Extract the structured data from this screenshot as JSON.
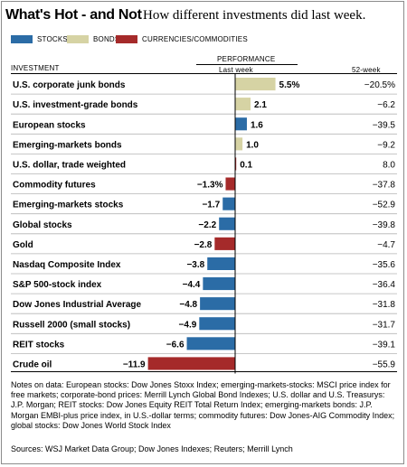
{
  "title": "What's Hot - and Not",
  "subtitle": "How different investments did last week.",
  "legend": [
    {
      "label": "STOCKS",
      "color": "#2b6ca6"
    },
    {
      "label": "BONDS",
      "color": "#d6d3a4"
    },
    {
      "label": "CURRENCIES/COMMODITIES",
      "color": "#a52a2a"
    }
  ],
  "headers": {
    "investment": "INVESTMENT",
    "performance": "PERFORMANCE",
    "last_week": "Last week",
    "week52": "52-week"
  },
  "chart_data": {
    "type": "bar",
    "orientation": "horizontal",
    "xlim": [
      -11.9,
      5.5
    ],
    "categories": [
      "U.S. corporate junk bonds",
      "U.S. investment-grade bonds",
      "European stocks",
      "Emerging-markets bonds",
      "U.S. dollar, trade weighted",
      "Commodity futures",
      "Emerging-markets stocks",
      "Global stocks",
      "Gold",
      "Nasdaq Composite Index",
      "S&P 500-stock index",
      "Dow Jones Industrial Average",
      "Russell 2000 (small stocks)",
      "REIT stocks",
      "Crude oil"
    ],
    "last_week": [
      5.5,
      2.1,
      1.6,
      1.0,
      0.1,
      -1.3,
      -1.7,
      -2.2,
      -2.8,
      -3.8,
      -4.4,
      -4.8,
      -4.9,
      -6.6,
      -11.9
    ],
    "last_week_labels": [
      "5.5%",
      "2.1",
      "1.6",
      "1.0",
      "0.1",
      "−1.3%",
      "−1.7",
      "−2.2",
      "−2.8",
      "−3.8",
      "−4.4",
      "−4.8",
      "−4.9",
      "−6.6",
      "−11.9"
    ],
    "week52_labels": [
      "−20.5%",
      "−6.2",
      "−39.5",
      "−9.2",
      "8.0",
      "−37.8",
      "−52.9",
      "−39.8",
      "−4.7",
      "−35.6",
      "−36.4",
      "−31.8",
      "−31.7",
      "−39.1",
      "−55.9"
    ],
    "groups": [
      "bonds",
      "bonds",
      "stocks",
      "bonds",
      "currencies",
      "currencies",
      "stocks",
      "stocks",
      "currencies",
      "stocks",
      "stocks",
      "stocks",
      "stocks",
      "stocks",
      "currencies"
    ]
  },
  "notes": "Notes on data: European stocks: Dow Jones Stoxx Index; emerging-markets-stocks: MSCI price index for free markets; corporate-bond prices: Merrill Lynch Global Bond Indexes; U.S. dollar and U.S. Treasurys: J.P. Morgan; REIT stocks: Dow Jones Equity REIT Total Return Index; emerging-markets bonds: J.P. Morgan EMBI-plus price index, in U.S.-dollar terms; commodity futures: Dow Jones-AIG Commodity Index; global stocks: Dow Jones World Stock Index",
  "sources": "Sources: WSJ Market Data Group; Dow Jones Indexes; Reuters; Merrill Lynch"
}
